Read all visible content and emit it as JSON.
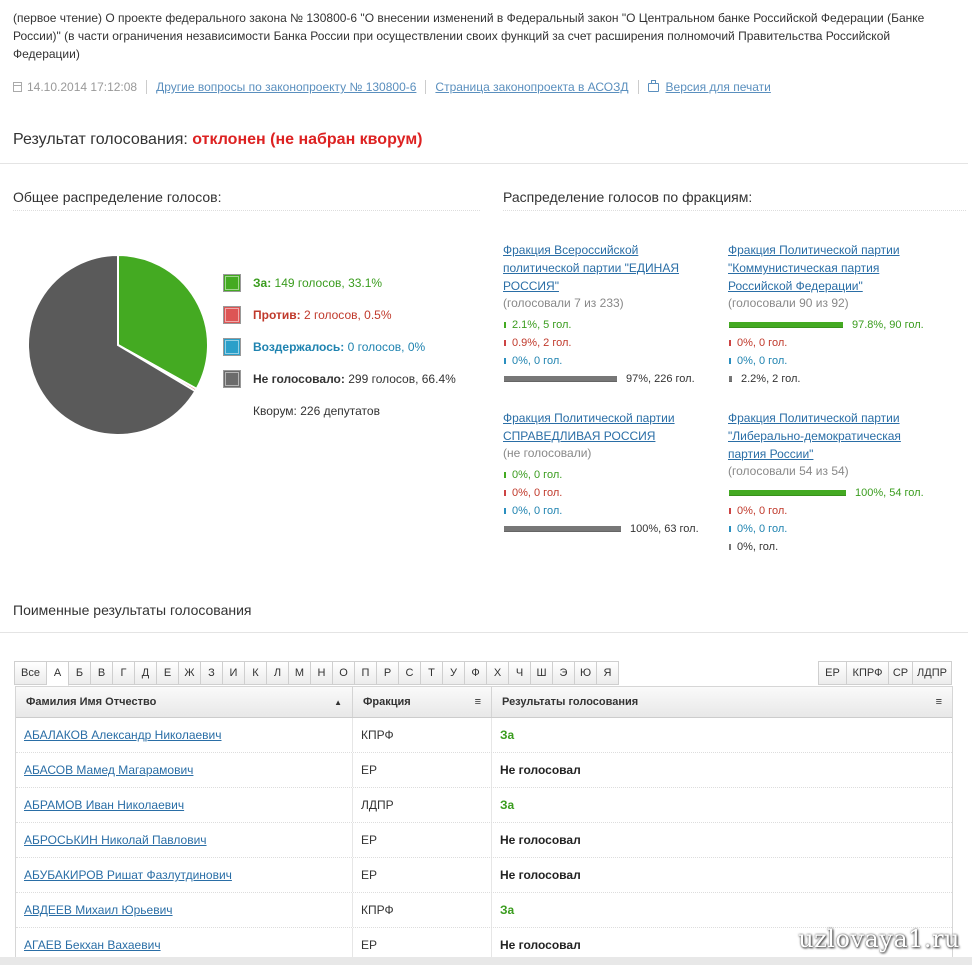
{
  "intro_text": "(первое чтение) О проекте федерального закона № 130800-6 \"О внесении изменений в Федеральный закон \"О Центральном банке Российской Федерации (Банке России)\" (в части ограничения независимости Банка России при осуществлении своих функций за счет расширения полномочий Правительства Российской Федерации)",
  "meta": {
    "datetime": "14.10.2014 17:12:08",
    "link_other": "Другие вопросы по законопроекту № 130800-6",
    "link_asozd": "Страница законопроекта в АСОЗД",
    "link_print": "Версия для печати"
  },
  "result": {
    "label": "Результат голосования:",
    "status": "отклонен (не набран кворум)"
  },
  "overall": {
    "heading": "Общее распределение голосов:",
    "legend": [
      {
        "label": "За:",
        "value": "149 голосов, 33.1%",
        "color": "#44aa22",
        "tone": "green"
      },
      {
        "label": "Против:",
        "value": "2 голосов, 0.5%",
        "color": "#dd5555",
        "tone": "red"
      },
      {
        "label": "Воздержалось:",
        "value": "0 голосов, 0%",
        "color": "#2b9fc9",
        "tone": "blue"
      },
      {
        "label": "Не голосовало:",
        "value": "299 голосов, 66.4%",
        "color": "#6b6b6b",
        "tone": "gray"
      }
    ],
    "quorum": "Кворум: 226 депутатов"
  },
  "chart_data": {
    "type": "pie",
    "title": "",
    "labels": [
      "За",
      "Против",
      "Воздержалось",
      "Не голосовало"
    ],
    "values": [
      149,
      2,
      0,
      299
    ],
    "percents": [
      33.1,
      0.5,
      0,
      66.4
    ],
    "colors": [
      "#44aa22",
      "#dd5555",
      "#2b9fc9",
      "#5a5a5a"
    ]
  },
  "factions": {
    "heading": "Распределение голосов по фракциям:",
    "items": [
      {
        "name": "Фракция Всероссийской политической партии \"ЕДИНАЯ РОССИЯ\"",
        "sub": "(голосовали 7 из 233)",
        "rows": [
          {
            "kind": "yes",
            "pct": 2.1,
            "text": "2.1%, 5 гол."
          },
          {
            "kind": "no",
            "pct": 0.9,
            "text": "0.9%, 2 гол."
          },
          {
            "kind": "abs",
            "pct": 0,
            "text": "0%, 0 гол."
          },
          {
            "kind": "nv",
            "pct": 97,
            "text": "97%, 226 гол."
          }
        ]
      },
      {
        "name": "Фракция Политической партии \"Коммунистическая партия Российской Федерации\"",
        "sub": "(голосовали 90 из 92)",
        "rows": [
          {
            "kind": "yes",
            "pct": 97.8,
            "text": "97.8%, 90 гол."
          },
          {
            "kind": "no",
            "pct": 0,
            "text": "0%, 0 гол."
          },
          {
            "kind": "abs",
            "pct": 0,
            "text": "0%, 0 гол."
          },
          {
            "kind": "nv",
            "pct": 2.2,
            "text": "2.2%, 2 гол."
          }
        ]
      },
      {
        "name": "Фракция Политической партии СПРАВЕДЛИВАЯ РОССИЯ",
        "sub": "(не голосовали)",
        "rows": [
          {
            "kind": "yes",
            "pct": 0,
            "text": "0%, 0 гол."
          },
          {
            "kind": "no",
            "pct": 0,
            "text": "0%, 0 гол."
          },
          {
            "kind": "abs",
            "pct": 0,
            "text": "0%, 0 гол."
          },
          {
            "kind": "nv",
            "pct": 100,
            "text": "100%, 63 гол."
          }
        ]
      },
      {
        "name": "Фракция Политической партии \"Либерально-демократическая партия России\"",
        "sub": "(голосовали 54 из 54)",
        "rows": [
          {
            "kind": "yes",
            "pct": 100,
            "text": "100%, 54 гол."
          },
          {
            "kind": "no",
            "pct": 0,
            "text": "0%, 0 гол."
          },
          {
            "kind": "abs",
            "pct": 0,
            "text": "0%, 0 гол."
          },
          {
            "kind": "nv",
            "pct": 0,
            "text": "0%, гол."
          }
        ]
      }
    ]
  },
  "roll": {
    "heading": "Поименные результаты голосования",
    "letters": [
      "Все",
      "А",
      "Б",
      "В",
      "Г",
      "Д",
      "Е",
      "Ж",
      "З",
      "И",
      "К",
      "Л",
      "М",
      "Н",
      "О",
      "П",
      "Р",
      "С",
      "Т",
      "У",
      "Ф",
      "Х",
      "Ч",
      "Ш",
      "Э",
      "Ю",
      "Я"
    ],
    "active_letter": "А",
    "faction_filters": [
      "ЕР",
      "КПРФ",
      "СР",
      "ЛДПР"
    ],
    "columns": [
      "Фамилия Имя Отчество",
      "Фракция",
      "Результаты голосования"
    ],
    "rows": [
      {
        "name": "АБАЛАКОВ Александр Николаевич",
        "faction": "КПРФ",
        "vote": "За",
        "yes": true
      },
      {
        "name": "АБАСОВ Мамед Магарамович",
        "faction": "ЕР",
        "vote": "Не голосовал",
        "yes": false
      },
      {
        "name": "АБРАМОВ Иван Николаевич",
        "faction": "ЛДПР",
        "vote": "За",
        "yes": true
      },
      {
        "name": "АБРОСЬКИН Николай Павлович",
        "faction": "ЕР",
        "vote": "Не голосовал",
        "yes": false
      },
      {
        "name": "АБУБАКИРОВ Ришат Фазлутдинович",
        "faction": "ЕР",
        "vote": "Не голосовал",
        "yes": false
      },
      {
        "name": "АВДЕЕВ Михаил Юрьевич",
        "faction": "КПРФ",
        "vote": "За",
        "yes": true
      },
      {
        "name": "АГАЕВ Бекхан Вахаевич",
        "faction": "ЕР",
        "vote": "Не голосовал",
        "yes": false
      }
    ]
  },
  "watermark": "uzlovaya1.ru"
}
